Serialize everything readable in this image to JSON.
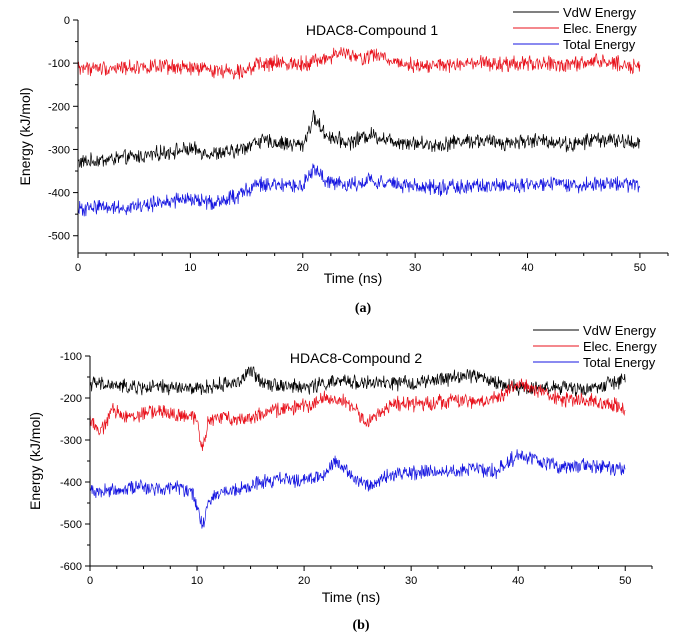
{
  "chart_data": [
    {
      "type": "line",
      "title": "HDAC8-Compound 1",
      "panel_label": "(a)",
      "xlabel": "Time (ns)",
      "ylabel": "Energy (kJ/mol)",
      "xlim": [
        0,
        52.5
      ],
      "ylim": [
        -540,
        0
      ],
      "xticks": [
        0,
        10,
        20,
        30,
        40,
        50
      ],
      "yticks": [
        0,
        -100,
        -200,
        -300,
        -400,
        -500
      ],
      "legend_position": "top-right",
      "series": [
        {
          "name": "VdW Energy",
          "color": "#000000",
          "x": [
            0,
            2,
            4,
            6,
            8,
            10,
            12,
            14,
            16,
            18,
            20,
            21,
            22,
            24,
            26,
            28,
            30,
            32,
            34,
            36,
            38,
            40,
            42,
            44,
            46,
            48,
            50
          ],
          "values": [
            -330,
            -325,
            -320,
            -315,
            -305,
            -300,
            -310,
            -305,
            -280,
            -285,
            -290,
            -225,
            -265,
            -285,
            -265,
            -280,
            -285,
            -290,
            -280,
            -280,
            -285,
            -280,
            -280,
            -290,
            -275,
            -280,
            -285
          ]
        },
        {
          "name": "Elec. Energy",
          "color": "#e8111b",
          "x": [
            0,
            2,
            4,
            6,
            8,
            10,
            12,
            14,
            16,
            18,
            20,
            22,
            23.5,
            25,
            26.5,
            28,
            30,
            32,
            34,
            36,
            38,
            40,
            42,
            44,
            46,
            48,
            50
          ],
          "values": [
            -110,
            -112,
            -110,
            -108,
            -110,
            -112,
            -115,
            -120,
            -105,
            -100,
            -100,
            -90,
            -75,
            -90,
            -80,
            -95,
            -105,
            -105,
            -105,
            -100,
            -105,
            -100,
            -102,
            -105,
            -95,
            -100,
            -110
          ]
        },
        {
          "name": "Total Energy",
          "color": "#1515e0",
          "x": [
            0,
            2,
            4,
            6,
            8,
            10,
            12,
            14,
            16,
            18,
            20,
            21,
            22,
            24,
            26,
            28,
            30,
            32,
            34,
            36,
            38,
            40,
            42,
            44,
            46,
            48,
            50
          ],
          "values": [
            -440,
            -430,
            -435,
            -430,
            -420,
            -415,
            -425,
            -410,
            -380,
            -385,
            -385,
            -345,
            -370,
            -385,
            -370,
            -380,
            -385,
            -390,
            -385,
            -385,
            -385,
            -385,
            -380,
            -385,
            -380,
            -380,
            -385
          ]
        }
      ]
    },
    {
      "type": "line",
      "title": "HDAC8-Compound 2",
      "panel_label": "(b)",
      "xlabel": "Time (ns)",
      "ylabel": "Energy (kJ/mol)",
      "xlim": [
        0,
        52.5
      ],
      "ylim": [
        -600,
        -100
      ],
      "xticks": [
        0,
        10,
        20,
        30,
        40,
        50
      ],
      "yticks": [
        -100,
        -200,
        -300,
        -400,
        -500,
        -600
      ],
      "legend_position": "top-right",
      "series": [
        {
          "name": "VdW Energy",
          "color": "#000000",
          "x": [
            0,
            2,
            4,
            6,
            8,
            10,
            12,
            14,
            15,
            16,
            18,
            20,
            22,
            24,
            26,
            28,
            30,
            32,
            34,
            36,
            38,
            40,
            42,
            44,
            46,
            48,
            50
          ],
          "values": [
            -165,
            -170,
            -175,
            -175,
            -175,
            -180,
            -170,
            -160,
            -135,
            -160,
            -170,
            -175,
            -165,
            -160,
            -165,
            -165,
            -165,
            -160,
            -150,
            -145,
            -165,
            -175,
            -175,
            -175,
            -180,
            -170,
            -155
          ]
        },
        {
          "name": "Elec. Energy",
          "color": "#e8111b",
          "x": [
            0,
            1,
            2,
            4,
            6,
            8,
            10,
            10.5,
            11,
            12,
            14,
            16,
            18,
            20,
            22,
            24,
            26,
            28,
            30,
            32,
            34,
            36,
            38,
            40,
            42,
            44,
            46,
            48,
            50
          ],
          "values": [
            -245,
            -285,
            -230,
            -245,
            -230,
            -240,
            -250,
            -320,
            -260,
            -245,
            -250,
            -240,
            -225,
            -220,
            -200,
            -210,
            -260,
            -215,
            -215,
            -210,
            -205,
            -210,
            -200,
            -165,
            -185,
            -205,
            -205,
            -210,
            -225
          ]
        },
        {
          "name": "Total Energy",
          "color": "#1515e0",
          "x": [
            0,
            2,
            4,
            6,
            8,
            9.5,
            10.5,
            11,
            12,
            14,
            16,
            18,
            20,
            22,
            23,
            24,
            26,
            28,
            30,
            32,
            34,
            36,
            38,
            40,
            42,
            44,
            46,
            48,
            50
          ],
          "values": [
            -420,
            -420,
            -410,
            -415,
            -410,
            -420,
            -510,
            -450,
            -425,
            -420,
            -400,
            -395,
            -395,
            -385,
            -345,
            -375,
            -410,
            -385,
            -380,
            -370,
            -375,
            -370,
            -375,
            -335,
            -350,
            -365,
            -360,
            -365,
            -370
          ]
        }
      ]
    }
  ]
}
